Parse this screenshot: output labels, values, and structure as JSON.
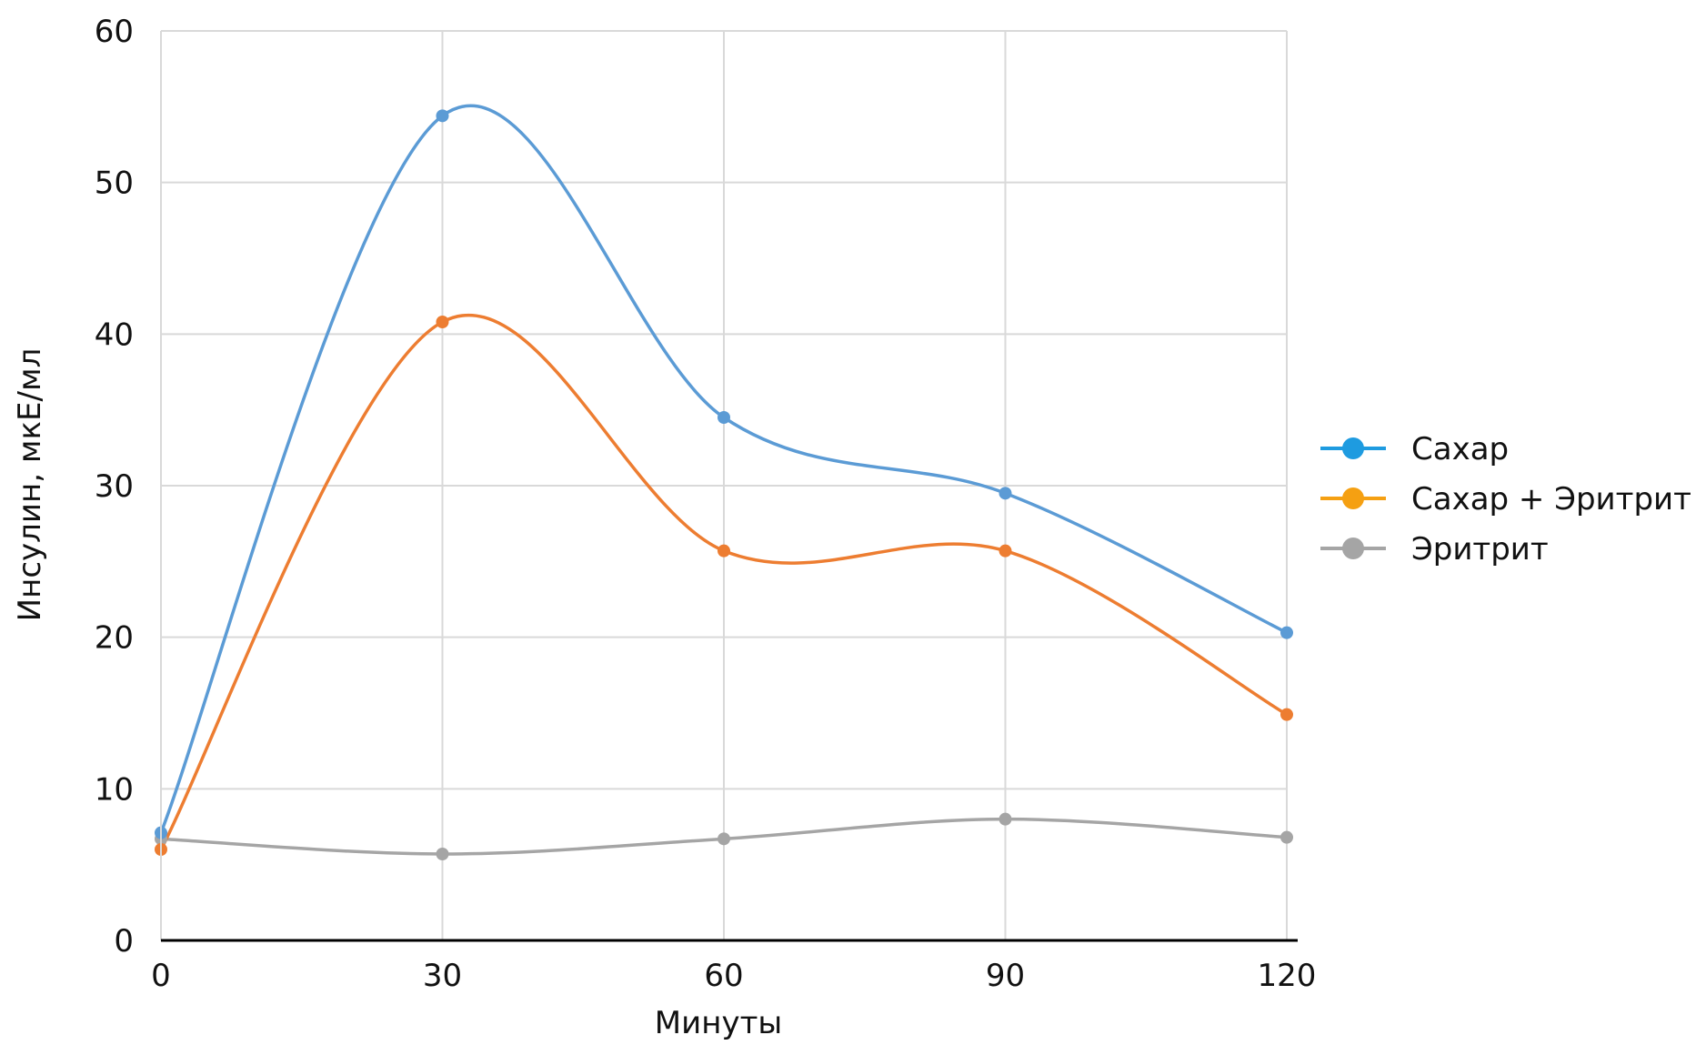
{
  "chart_data": {
    "type": "line",
    "title": "",
    "xlabel": "Минуты",
    "ylabel": "Инсулин, мкЕ/мл",
    "x": [
      0,
      30,
      60,
      90,
      120
    ],
    "x_tick_labels": [
      "0",
      "30",
      "60",
      "90",
      "120"
    ],
    "y_ticks": [
      0,
      10,
      20,
      30,
      40,
      50,
      60
    ],
    "y_tick_labels": [
      "0",
      "10",
      "20",
      "30",
      "40",
      "50",
      "60"
    ],
    "xlim": [
      0,
      120
    ],
    "ylim": [
      0,
      60
    ],
    "grid": true,
    "legend_position": "right",
    "smooth": true,
    "series": [
      {
        "name": "Сахар",
        "values": [
          7.1,
          54.4,
          34.5,
          29.5,
          20.3
        ],
        "color": "#5B9BD5",
        "legend_color": "#1E9BE0"
      },
      {
        "name": "Сахар + Эритрит",
        "values": [
          6.0,
          40.8,
          25.7,
          25.7,
          14.9
        ],
        "color": "#ED7D31",
        "legend_color": "#F5A012"
      },
      {
        "name": "Эритрит",
        "values": [
          6.7,
          5.7,
          6.7,
          8.0,
          6.8
        ],
        "color": "#A5A5A5",
        "legend_color": "#A5A5A5"
      }
    ]
  }
}
